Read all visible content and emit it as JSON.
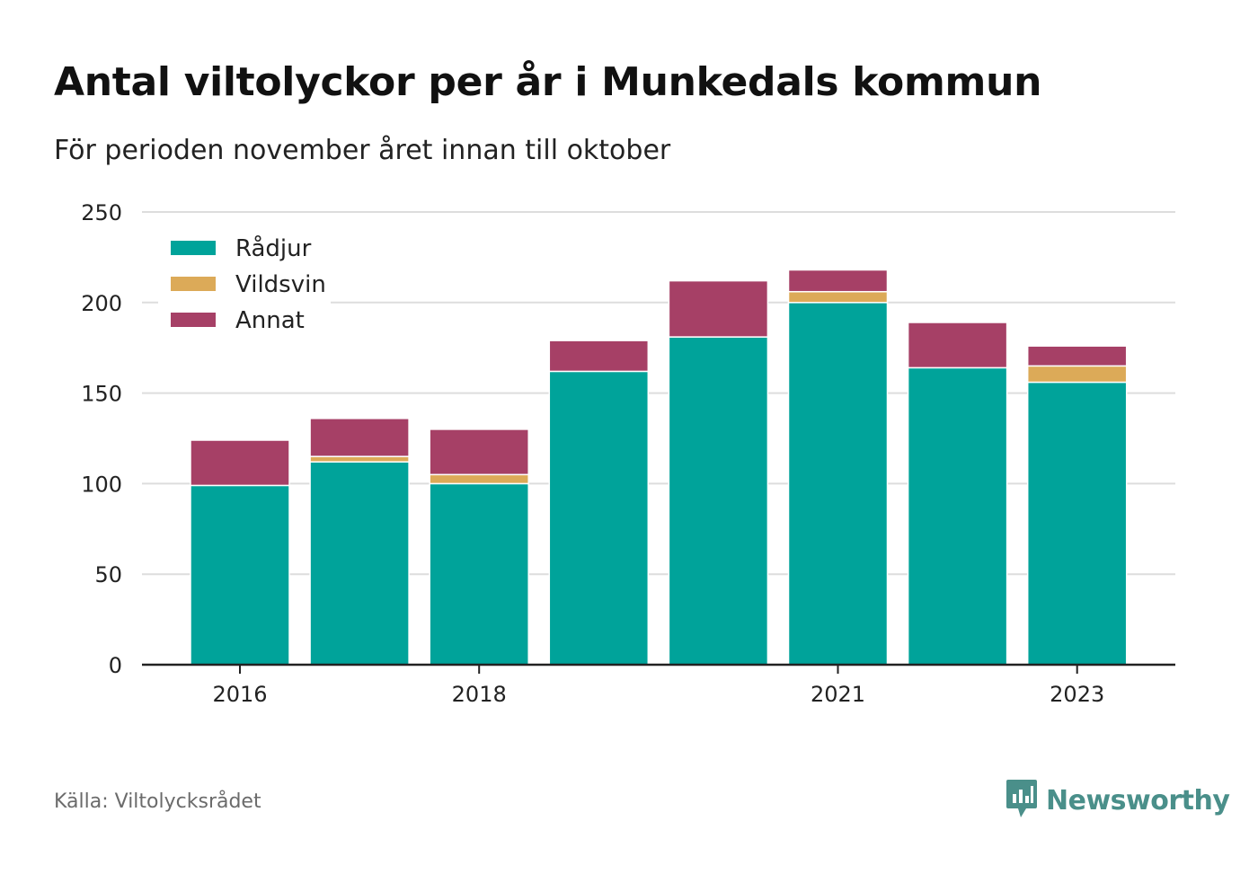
{
  "header": {
    "title": "Antal viltolyckor per år i Munkedals kommun",
    "subtitle": "För perioden november året innan till oktober"
  },
  "footer": {
    "source": "Källa: Viltolycksrådet",
    "brand": "Newsworthy"
  },
  "icons": {
    "brand_logo": "newsworthy-logo-icon"
  },
  "colors": {
    "radjur": "#00a39a",
    "vildsvin": "#dcaa58",
    "annat": "#a64066",
    "grid": "#dddddd",
    "axis": "#222222"
  },
  "chart_data": {
    "type": "bar",
    "stacked": true,
    "categories": [
      2016,
      2017,
      2018,
      2019,
      2020,
      2021,
      2022,
      2023
    ],
    "x_tick_labels": [
      "2016",
      "2018",
      "2021",
      "2023"
    ],
    "series": [
      {
        "name": "Rådjur",
        "color": "#00a39a",
        "values": [
          99,
          112,
          100,
          162,
          181,
          200,
          164,
          156
        ]
      },
      {
        "name": "Vildsvin",
        "color": "#dcaa58",
        "values": [
          0,
          3,
          5,
          0,
          0,
          6,
          0,
          9
        ]
      },
      {
        "name": "Annat",
        "color": "#a64066",
        "values": [
          25,
          21,
          25,
          17,
          31,
          12,
          25,
          11
        ]
      }
    ],
    "ylim": [
      0,
      250
    ],
    "y_ticks": [
      0,
      50,
      100,
      150,
      200,
      250
    ],
    "grid": true,
    "legend_position": "top-left",
    "xlabel": "",
    "ylabel": ""
  }
}
